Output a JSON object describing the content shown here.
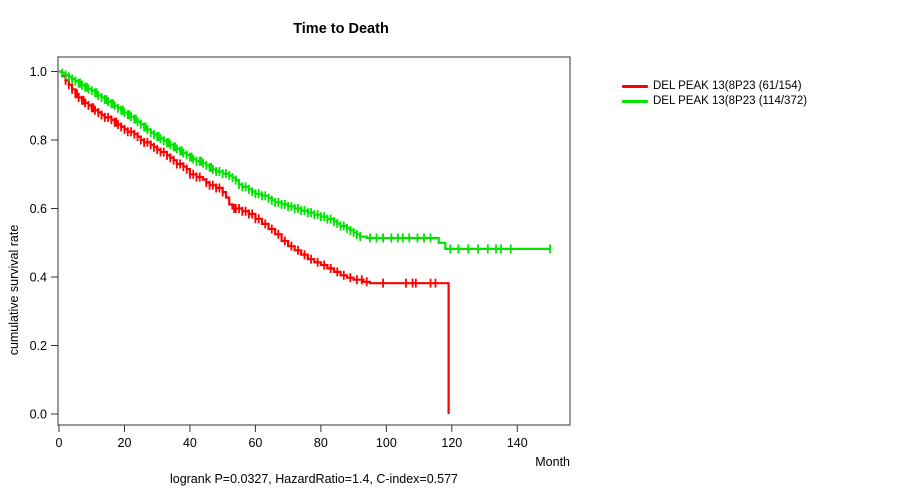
{
  "chart_data": {
    "type": "line",
    "subtype": "kaplan_meier_step",
    "title": "Time to Death",
    "xlabel": "Month",
    "ylabel": "cumulative survival rate",
    "footnote": "logrank P=0.0327, HazardRatio=1.4, C-index=0.577",
    "xlim": [
      0,
      156
    ],
    "ylim": [
      0,
      1.04
    ],
    "x_ticks": [
      0,
      20,
      40,
      60,
      80,
      100,
      120,
      140
    ],
    "y_ticks": [
      0.0,
      0.2,
      0.4,
      0.6,
      0.8,
      1.0
    ],
    "y_tick_labels": [
      "0.0",
      "0.2",
      "0.4",
      "0.6",
      "0.8",
      "1.0"
    ],
    "grid": false,
    "legend_position": "right-outside",
    "axis_color": "#333333",
    "series": [
      {
        "name": "DEL PEAK 13(8P23 (61/154)",
        "color": "#ff0000",
        "end_time": 119,
        "steps": [
          [
            0,
            1.0
          ],
          [
            1,
            0.987
          ],
          [
            2,
            0.974
          ],
          [
            3,
            0.961
          ],
          [
            4,
            0.948
          ],
          [
            5,
            0.935
          ],
          [
            6,
            0.924
          ],
          [
            7,
            0.916
          ],
          [
            8,
            0.908
          ],
          [
            9,
            0.901
          ],
          [
            10,
            0.894
          ],
          [
            11,
            0.887
          ],
          [
            12,
            0.88
          ],
          [
            13,
            0.873
          ],
          [
            14,
            0.866
          ],
          [
            16,
            0.859
          ],
          [
            17,
            0.852
          ],
          [
            18,
            0.845
          ],
          [
            19,
            0.838
          ],
          [
            20,
            0.831
          ],
          [
            21,
            0.824
          ],
          [
            23,
            0.817
          ],
          [
            24,
            0.81
          ],
          [
            25,
            0.8
          ],
          [
            26,
            0.793
          ],
          [
            28,
            0.786
          ],
          [
            29,
            0.779
          ],
          [
            30,
            0.772
          ],
          [
            31,
            0.765
          ],
          [
            33,
            0.755
          ],
          [
            34,
            0.748
          ],
          [
            35,
            0.741
          ],
          [
            36,
            0.73
          ],
          [
            38,
            0.722
          ],
          [
            39,
            0.715
          ],
          [
            40,
            0.7
          ],
          [
            42,
            0.692
          ],
          [
            44,
            0.684
          ],
          [
            45,
            0.676
          ],
          [
            46,
            0.668
          ],
          [
            48,
            0.66
          ],
          [
            50,
            0.648
          ],
          [
            51,
            0.632
          ],
          [
            52,
            0.612
          ],
          [
            53,
            0.6
          ],
          [
            56,
            0.592
          ],
          [
            58,
            0.584
          ],
          [
            60,
            0.57
          ],
          [
            62,
            0.555
          ],
          [
            64,
            0.54
          ],
          [
            66,
            0.525
          ],
          [
            68,
            0.505
          ],
          [
            70,
            0.49
          ],
          [
            72,
            0.478
          ],
          [
            74,
            0.465
          ],
          [
            76,
            0.452
          ],
          [
            78,
            0.443
          ],
          [
            80,
            0.435
          ],
          [
            82,
            0.425
          ],
          [
            84,
            0.415
          ],
          [
            86,
            0.405
          ],
          [
            88,
            0.398
          ],
          [
            90,
            0.392
          ],
          [
            93,
            0.386
          ],
          [
            95,
            0.382
          ],
          [
            119,
            0.0
          ]
        ],
        "censor_times": [
          2,
          3,
          4,
          5,
          5.5,
          6,
          7,
          7.5,
          8,
          9,
          10,
          10.5,
          11,
          12,
          13,
          14,
          15,
          16,
          17,
          17.5,
          18,
          19,
          20,
          21,
          22,
          23,
          24,
          25,
          26,
          27,
          28,
          29,
          30,
          31,
          32,
          33,
          34,
          35,
          36,
          37,
          38,
          39,
          40,
          41,
          42,
          43,
          45,
          46,
          47,
          48,
          49,
          50,
          53.5,
          54,
          55,
          56,
          57,
          58,
          59,
          60,
          61,
          63,
          65,
          67,
          69,
          71,
          73,
          75,
          77,
          79,
          81,
          83,
          85,
          87,
          89,
          91,
          92.5,
          94,
          99,
          106,
          108,
          109,
          113.5,
          115
        ]
      },
      {
        "name": "DEL PEAK 13(8P23 (114/372)",
        "color": "#00e400",
        "end_time": 150,
        "steps": [
          [
            0,
            1.0
          ],
          [
            1,
            0.995
          ],
          [
            2,
            0.99
          ],
          [
            3,
            0.984
          ],
          [
            4,
            0.978
          ],
          [
            5,
            0.972
          ],
          [
            6,
            0.966
          ],
          [
            7,
            0.96
          ],
          [
            8,
            0.954
          ],
          [
            9,
            0.949
          ],
          [
            10,
            0.944
          ],
          [
            11,
            0.938
          ],
          [
            12,
            0.93
          ],
          [
            13,
            0.924
          ],
          [
            14,
            0.918
          ],
          [
            15,
            0.912
          ],
          [
            16,
            0.906
          ],
          [
            17,
            0.9
          ],
          [
            18,
            0.893
          ],
          [
            19,
            0.887
          ],
          [
            20,
            0.88
          ],
          [
            21,
            0.874
          ],
          [
            22,
            0.868
          ],
          [
            23,
            0.861
          ],
          [
            24,
            0.853
          ],
          [
            25,
            0.846
          ],
          [
            26,
            0.838
          ],
          [
            27,
            0.83
          ],
          [
            28,
            0.822
          ],
          [
            29,
            0.816
          ],
          [
            30,
            0.81
          ],
          [
            31,
            0.804
          ],
          [
            32,
            0.798
          ],
          [
            33,
            0.792
          ],
          [
            34,
            0.786
          ],
          [
            35,
            0.78
          ],
          [
            36,
            0.774
          ],
          [
            37,
            0.768
          ],
          [
            38,
            0.762
          ],
          [
            39,
            0.756
          ],
          [
            40,
            0.75
          ],
          [
            41,
            0.744
          ],
          [
            42,
            0.738
          ],
          [
            44,
            0.732
          ],
          [
            45,
            0.726
          ],
          [
            46,
            0.72
          ],
          [
            47,
            0.714
          ],
          [
            48,
            0.708
          ],
          [
            50,
            0.702
          ],
          [
            52,
            0.696
          ],
          [
            53,
            0.69
          ],
          [
            54,
            0.683
          ],
          [
            55,
            0.67
          ],
          [
            56,
            0.663
          ],
          [
            58,
            0.656
          ],
          [
            59,
            0.649
          ],
          [
            60,
            0.643
          ],
          [
            62,
            0.637
          ],
          [
            64,
            0.63
          ],
          [
            65,
            0.624
          ],
          [
            66,
            0.618
          ],
          [
            68,
            0.612
          ],
          [
            70,
            0.606
          ],
          [
            72,
            0.6
          ],
          [
            74,
            0.594
          ],
          [
            76,
            0.588
          ],
          [
            78,
            0.582
          ],
          [
            80,
            0.576
          ],
          [
            82,
            0.569
          ],
          [
            84,
            0.562
          ],
          [
            85,
            0.556
          ],
          [
            86,
            0.549
          ],
          [
            88,
            0.542
          ],
          [
            89,
            0.536
          ],
          [
            90,
            0.53
          ],
          [
            91,
            0.524
          ],
          [
            92,
            0.518
          ],
          [
            94,
            0.514
          ],
          [
            116,
            0.5
          ],
          [
            118,
            0.482
          ]
        ],
        "censor_times": [
          1,
          2,
          3,
          4,
          5,
          6,
          6.5,
          7,
          8,
          8.5,
          9,
          10,
          11,
          11.5,
          12,
          13,
          14,
          14.5,
          15,
          16,
          16.5,
          17,
          18,
          19,
          19.5,
          20,
          21,
          21.5,
          22,
          23,
          23.5,
          24,
          25,
          26,
          26.5,
          27,
          28,
          29,
          30,
          30.5,
          31,
          32,
          33,
          33.5,
          34,
          35,
          35.5,
          36,
          37,
          37.5,
          38,
          39,
          40,
          40.5,
          41,
          42,
          43,
          43.5,
          44,
          45,
          46,
          46.5,
          47,
          48,
          49,
          50,
          51,
          52,
          53,
          54,
          55,
          56,
          57,
          58,
          59,
          60,
          61,
          62,
          63,
          64,
          65,
          66,
          67,
          68,
          69,
          70,
          71,
          72,
          73,
          74,
          75,
          76,
          77,
          78,
          79,
          80,
          81,
          82,
          83,
          84,
          85,
          86,
          87,
          88,
          89,
          90,
          91,
          92,
          95,
          97,
          99,
          101.5,
          103.5,
          105,
          107,
          109.5,
          111.5,
          113.5,
          119.5,
          122,
          125,
          128,
          131,
          133.5,
          135,
          138,
          150
        ]
      }
    ]
  }
}
